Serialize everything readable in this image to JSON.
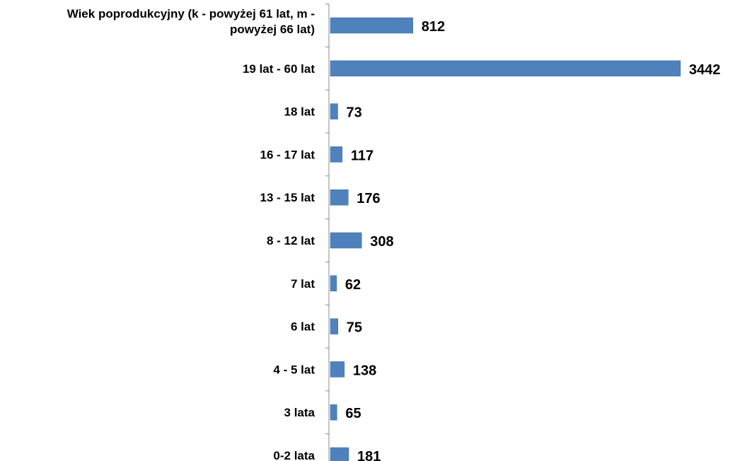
{
  "chart_data": {
    "type": "bar",
    "orientation": "horizontal",
    "categories": [
      [
        "Wiek poprodukcyjny (k - powyżej 61 lat, m -",
        "powyżej 66 lat)"
      ],
      [
        "19 lat - 60 lat"
      ],
      [
        "18 lat"
      ],
      [
        "16 - 17 lat"
      ],
      [
        "13 - 15 lat"
      ],
      [
        "8 - 12 lat"
      ],
      [
        "7 lat"
      ],
      [
        "6 lat"
      ],
      [
        "4 - 5 lat"
      ],
      [
        "3 lata"
      ],
      [
        "0-2 lata"
      ]
    ],
    "values": [
      812,
      3442,
      73,
      117,
      176,
      308,
      62,
      75,
      138,
      65,
      181
    ],
    "data_labels": [
      "812",
      "3442",
      "73",
      "117",
      "176",
      "308",
      "62",
      "75",
      "138",
      "65",
      "181"
    ],
    "xlim": [
      0,
      3442
    ],
    "grid": false,
    "legend": "none",
    "colors": {
      "bar": "#4f81bd",
      "bar_stroke": "#3f6fa8",
      "axis": "#8c8c8c",
      "text": "#000000"
    }
  }
}
